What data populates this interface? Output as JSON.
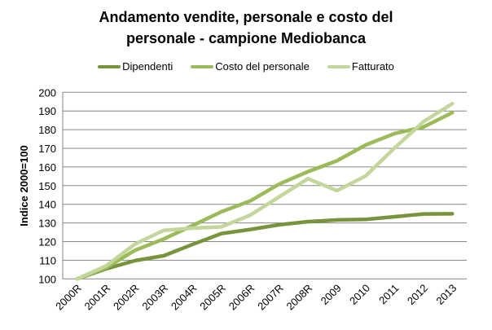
{
  "chart_data": {
    "type": "line",
    "title_line1": "Andamento vendite, personale e costo del",
    "title_line2": "personale - campione Mediobanca",
    "xlabel": "",
    "ylabel": "Indice 2000=100",
    "ylim": [
      100,
      200
    ],
    "yticks": [
      100,
      110,
      120,
      130,
      140,
      150,
      160,
      170,
      180,
      190,
      200
    ],
    "grid": true,
    "legend_position": "top",
    "categories": [
      "2000R",
      "2001R",
      "2002R",
      "2003R",
      "2004R",
      "2005R",
      "2006R",
      "2007R",
      "2008R",
      "2009",
      "2010",
      "2011",
      "2012",
      "2013"
    ],
    "series": [
      {
        "name": "Dipendenti",
        "color": "#77933C",
        "values": [
          100,
          105.4,
          109.8,
          112.4,
          118.5,
          124.3,
          126.5,
          129,
          130.7,
          131.6,
          131.9,
          133.3,
          134.8,
          134.9
        ]
      },
      {
        "name": "Costo del personale",
        "color": "#9BBB59",
        "values": [
          100,
          106,
          115.3,
          121.4,
          128.6,
          136,
          141.8,
          150.8,
          157.5,
          163.3,
          171.8,
          177.9,
          181.4,
          189.1
        ]
      },
      {
        "name": "Fatturato",
        "color": "#C3D69B",
        "values": [
          100,
          107,
          118.6,
          126,
          127.2,
          127.9,
          134.2,
          144,
          153.7,
          147.3,
          155.2,
          170.2,
          184.3,
          193.9
        ]
      }
    ]
  }
}
